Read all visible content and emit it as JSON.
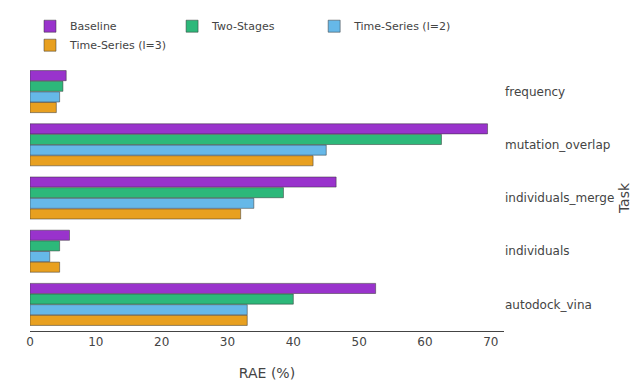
{
  "chart_data": {
    "type": "bar",
    "orientation": "horizontal",
    "categories": [
      "autodock_vina",
      "individuals",
      "individuals_merge",
      "mutation_overlap",
      "frequency"
    ],
    "series": [
      {
        "name": "Baseline",
        "color": "#9933cc",
        "values": [
          52.5,
          6.0,
          46.5,
          69.5,
          5.5
        ]
      },
      {
        "name": "Two-Stages",
        "color": "#2db87a",
        "values": [
          40.0,
          4.5,
          38.5,
          62.5,
          5.0
        ]
      },
      {
        "name": "Time-Series (l=2)",
        "color": "#66b8e8",
        "values": [
          33.0,
          3.0,
          34.0,
          45.0,
          4.5
        ]
      },
      {
        "name": "Time-Series (l=3)",
        "color": "#e8a020",
        "values": [
          33.0,
          4.5,
          32.0,
          43.0,
          4.0
        ]
      }
    ],
    "xlabel": "RAE (%)",
    "ylabel": "Task",
    "xlim": [
      0,
      72
    ],
    "xticks": [
      0,
      10,
      20,
      30,
      40,
      50,
      60,
      70
    ],
    "grid": false,
    "legend": "top"
  }
}
